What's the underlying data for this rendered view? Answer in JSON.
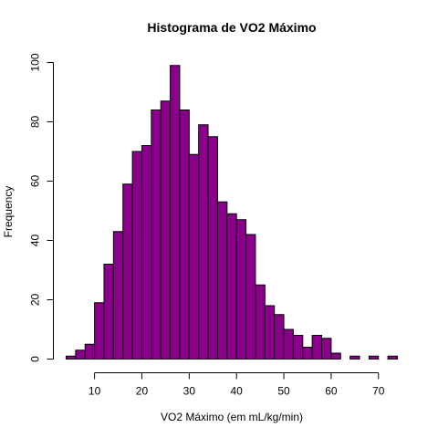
{
  "chart_data": {
    "type": "bar",
    "title": "Histograma de VO2 Máximo",
    "xlabel": "VO2 Máximo (em mL/kg/min)",
    "ylabel": "Frequency",
    "bin_width": 2,
    "bins": [
      {
        "start": 4,
        "end": 6,
        "count": 1
      },
      {
        "start": 6,
        "end": 8,
        "count": 3
      },
      {
        "start": 8,
        "end": 10,
        "count": 5
      },
      {
        "start": 10,
        "end": 12,
        "count": 19
      },
      {
        "start": 12,
        "end": 14,
        "count": 32
      },
      {
        "start": 14,
        "end": 16,
        "count": 43
      },
      {
        "start": 16,
        "end": 18,
        "count": 59
      },
      {
        "start": 18,
        "end": 20,
        "count": 70
      },
      {
        "start": 20,
        "end": 22,
        "count": 72
      },
      {
        "start": 22,
        "end": 24,
        "count": 84
      },
      {
        "start": 24,
        "end": 26,
        "count": 87
      },
      {
        "start": 26,
        "end": 28,
        "count": 99
      },
      {
        "start": 28,
        "end": 30,
        "count": 84
      },
      {
        "start": 30,
        "end": 32,
        "count": 69
      },
      {
        "start": 32,
        "end": 34,
        "count": 79
      },
      {
        "start": 34,
        "end": 36,
        "count": 75
      },
      {
        "start": 36,
        "end": 38,
        "count": 53
      },
      {
        "start": 38,
        "end": 40,
        "count": 49
      },
      {
        "start": 40,
        "end": 42,
        "count": 47
      },
      {
        "start": 42,
        "end": 44,
        "count": 42
      },
      {
        "start": 44,
        "end": 46,
        "count": 25
      },
      {
        "start": 46,
        "end": 48,
        "count": 18
      },
      {
        "start": 48,
        "end": 50,
        "count": 15
      },
      {
        "start": 50,
        "end": 52,
        "count": 10
      },
      {
        "start": 52,
        "end": 54,
        "count": 8
      },
      {
        "start": 54,
        "end": 56,
        "count": 4
      },
      {
        "start": 56,
        "end": 58,
        "count": 8
      },
      {
        "start": 58,
        "end": 60,
        "count": 7
      },
      {
        "start": 60,
        "end": 62,
        "count": 2
      },
      {
        "start": 62,
        "end": 64,
        "count": 0
      },
      {
        "start": 64,
        "end": 66,
        "count": 1
      },
      {
        "start": 66,
        "end": 68,
        "count": 0
      },
      {
        "start": 68,
        "end": 70,
        "count": 1
      },
      {
        "start": 70,
        "end": 72,
        "count": 0
      },
      {
        "start": 72,
        "end": 74,
        "count": 1
      }
    ],
    "xlim": [
      4,
      74
    ],
    "ylim": [
      0,
      100
    ],
    "x_ticks": [
      10,
      20,
      30,
      40,
      50,
      60,
      70
    ],
    "y_ticks": [
      0,
      20,
      40,
      60,
      80,
      100
    ],
    "bar_color": "#8B008B",
    "bar_border_color": "#000000",
    "grid": false,
    "legend": "none"
  }
}
